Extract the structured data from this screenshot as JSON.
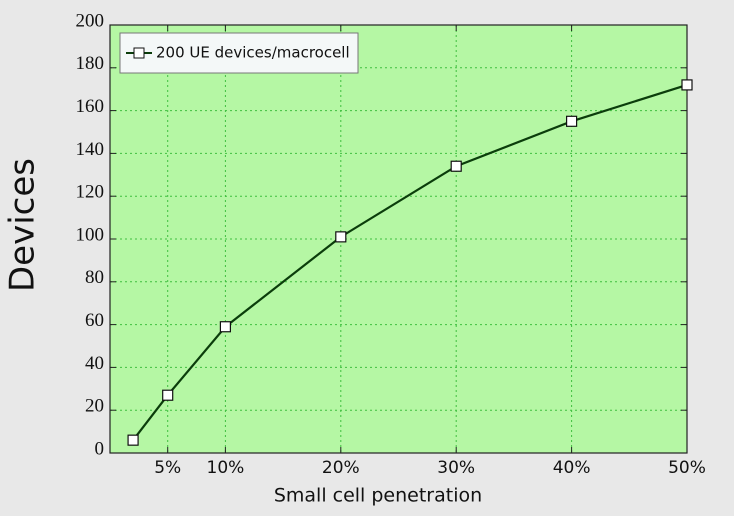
{
  "chart_data": {
    "type": "line",
    "x_label": "Small cell penetration",
    "y_label": "Devices",
    "series": [
      {
        "name": "200 UE devices/macrocell",
        "color": "#0b3d0b",
        "x": [
          2,
          5,
          10,
          20,
          30,
          40,
          50
        ],
        "values": [
          6,
          27,
          59,
          101,
          134,
          155,
          172
        ]
      }
    ],
    "xlim": [
      0,
      50
    ],
    "xticks": [
      {
        "value": 5,
        "label": "5%"
      },
      {
        "value": 10,
        "label": "10%"
      },
      {
        "value": 20,
        "label": "20%"
      },
      {
        "value": 30,
        "label": "30%"
      },
      {
        "value": 40,
        "label": "40%"
      },
      {
        "value": 50,
        "label": "50%"
      }
    ],
    "ylim": [
      0,
      200
    ],
    "yticks": [
      0,
      20,
      40,
      60,
      80,
      100,
      120,
      140,
      160,
      180,
      200
    ],
    "grid": true,
    "legend": "upper left"
  }
}
